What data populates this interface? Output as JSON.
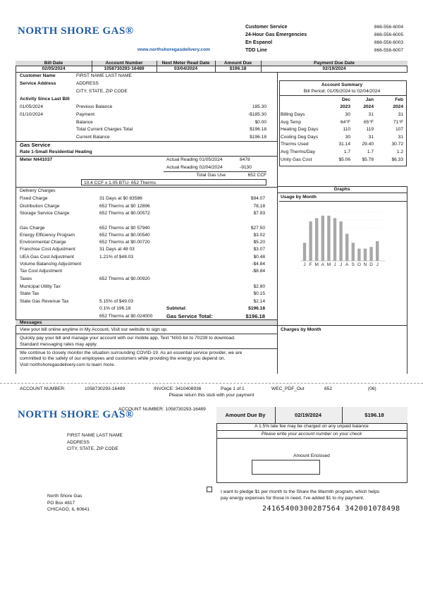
{
  "header": {
    "logo": "NORTH SHORE GAS®",
    "website": "www.northshoregasdelivery.com",
    "contacts": [
      {
        "label": "Customer Service",
        "phone": "866-556-6004"
      },
      {
        "label": "24-Hour Gas Emergencies",
        "phone": "866-556-6005"
      },
      {
        "label": "En Espanol",
        "phone": "866-556-6003"
      },
      {
        "label": "TDD Line",
        "phone": "866-556-6007"
      }
    ]
  },
  "summary_bar": {
    "columns": [
      "Bill Date",
      "Account Number",
      "Next Meter Read Date",
      "Amount Due",
      "Payment Due Date"
    ],
    "values": [
      "02/05/2024",
      "1058730293-16489",
      "03/04/2024",
      "$196.18",
      "02/19/2024"
    ]
  },
  "customer": {
    "name_label": "Customer Name",
    "name": "FIRST NAME LAST NAME",
    "address_label": "Service Address",
    "address": "ADDRESS",
    "city": "CITY, STATE, ZIP CODE"
  },
  "activity": {
    "title": "Activity Since Last Bill",
    "rows": [
      {
        "date": "01/05/2024",
        "label": "Previous Balance",
        "amount": "185.30"
      },
      {
        "date": "01/10/2024",
        "label": "Payment",
        "amount": "-$185.30"
      },
      {
        "label": "Balance",
        "amount": "$0.00"
      },
      {
        "label": "Total Current Charges Total",
        "amount": "$196.18"
      },
      {
        "label": "Current Balance",
        "amount": "$196.18"
      }
    ]
  },
  "gas_service": {
    "title": "Gas Service",
    "rate": "Rate 1-Small Residential Heating",
    "meter": "Meter N441037",
    "readings": [
      {
        "label": "Actual Reading 01/05/2024",
        "value": "8478"
      },
      {
        "label": "Actual Reading 02/04/2024",
        "value": "-9130"
      }
    ],
    "total_label": "Total Gas Use",
    "total": "652 CCF",
    "conversion": "10.4 CCF x 1.05 BTU- 652 Therms"
  },
  "charges": {
    "title": "Delivery Charges",
    "rows": [
      {
        "label": "Fixed Charge",
        "detail": "31 Days at $0 83586",
        "amount": "$94.07"
      },
      {
        "label": "Distribution Charge",
        "detail": "652 Therms at $0 12896",
        "amount": "78,18"
      },
      {
        "label": "Storage Service Charge",
        "detail": "652 Therms at $0.00572",
        "amount": "$7.93"
      },
      {
        "label": "Gas Charge",
        "detail": "652 Therms at $0 57940",
        "amount": "$27.50"
      },
      {
        "label": "Energy Efficiency  Program",
        "detail": "652 Therms at $0.00540",
        "amount": "$3.02"
      },
      {
        "label": "Environmental Charge",
        "detail": "652 Therms at $0.00720",
        "amount": "$5.20"
      },
      {
        "label": "Franchise Cost Adjustment",
        "detail": "31 Days at 48 03",
        "amount": "$3.07"
      },
      {
        "label": "UEA Gas Cost Adjustment",
        "detail": "1.21% of $48.03",
        "amount": "$0.48"
      },
      {
        "label": "Volume Balancing Adjustment",
        "amount": "-$4.84"
      },
      {
        "label": "Tax Cost Adjustment",
        "amount": "-$8.84"
      },
      {
        "label": "Taxes",
        "detail": "652 Therms at $0.00920"
      },
      {
        "label": "Municipal Utility Tax",
        "amount": "$2.80"
      },
      {
        "label": "State Tax",
        "amount": "$0.15"
      },
      {
        "label": "State Gas Revenue Tax",
        "detail": "5.15% of $49.03",
        "amount": "$2.14"
      },
      {
        "detail": "0.1% of 196.18",
        "total_label": "Subtotal:",
        "amount": "$196.18"
      },
      {
        "detail": "652 Therms at $0.024000",
        "total_label": "Gas Service Total:",
        "amount": "$196.18"
      }
    ]
  },
  "messages": {
    "title": "Messages",
    "items": [
      [
        "View your bill online anytime in My Account, Visit our website to sign up."
      ],
      [
        "Quickly pay your bill and manage your account with our mobile app. Text \"NSG bir to 70239 to download.",
        "Standard messaging rates may apply."
      ],
      [
        "We continue to closely monitor the situation surrounding COVID-19. As an essential service provider, we are",
        "committed to the safety of our employees and customers while providing the energy you depend on.",
        "Visit northshoregasdelivery.com to learn more."
      ]
    ]
  },
  "account_summary": {
    "title": "Account Summary",
    "period": "Bill Period: 01/05/2024 to 02/04/2024",
    "months": [
      {
        "month": "Dec",
        "year": "2023"
      },
      {
        "month": "Jan",
        "year": "2024"
      },
      {
        "month": "Feb",
        "year": "2024"
      }
    ],
    "rows": [
      [
        "Billing Days",
        "30",
        "31",
        "31"
      ],
      [
        "Avg Temp",
        "64°F",
        "65°F",
        "71°F"
      ],
      [
        "Heating Deg Days",
        "110",
        "119",
        "107"
      ],
      [
        "Cooling Deg Days",
        "30",
        "31",
        "31"
      ],
      [
        "Therms Used",
        "31.14",
        "29.40",
        "30.72"
      ],
      [
        "Avg Therms/Day",
        "1.7",
        "1.7",
        "1.2"
      ],
      [
        "Unity Gas Cost",
        "$5.06",
        "$5.78",
        "$6.33"
      ]
    ]
  },
  "graphs": {
    "title": "Graphs",
    "usage_title": "Usage by Month",
    "charges_title": "Charges by Month",
    "usage_chart": {
      "type": "bar",
      "categories": [
        "J",
        "F",
        "M",
        "A",
        "M",
        "J",
        "J",
        "A",
        "S",
        "O",
        "N",
        "D",
        "J"
      ],
      "values": [
        22,
        48,
        52,
        55,
        55,
        52,
        48,
        33,
        22,
        15,
        15,
        17,
        24
      ],
      "ylim": [
        0,
        60
      ],
      "color": "#a8a8a8"
    }
  },
  "stub_line": {
    "account_label": "ACCOUNT NUMBER:",
    "account": "1058730293-16489",
    "invoice": "INVOICE: 3410408936",
    "page": "Page 1 of 1",
    "code": "WEC_PDF_Out",
    "count": "652",
    "seq": "(06)",
    "note": "Please return this stub with your payment"
  },
  "stub": {
    "logo": "NORTH SHORE GAS®",
    "account": "ACCOUNT NUMBER: 1058730293-16489",
    "due_label": "Amount Due By",
    "due_date": "02/19/2024",
    "due_amount": "$196.18",
    "late_fee": "A 1.5% late fee may be charged on any unpaid balance",
    "check_note": "Please write your account number on your check",
    "enclosed_label": "Amount Enclosed",
    "customer": [
      "FIRST NAME LAST NAME",
      "ADDRESS",
      "CITY, STATE, ZIP CODE"
    ],
    "remit": [
      "North Shore Gas",
      "PO Box 4817",
      "CHICAGO, IL 60641"
    ],
    "pledge": [
      "I want to pledge $1 per month to the Share the Warmth program, which helps",
      "pay energy expenses for those in need. I've added $1 to my payment."
    ],
    "scanline": "24165400300287564 342001078498"
  }
}
